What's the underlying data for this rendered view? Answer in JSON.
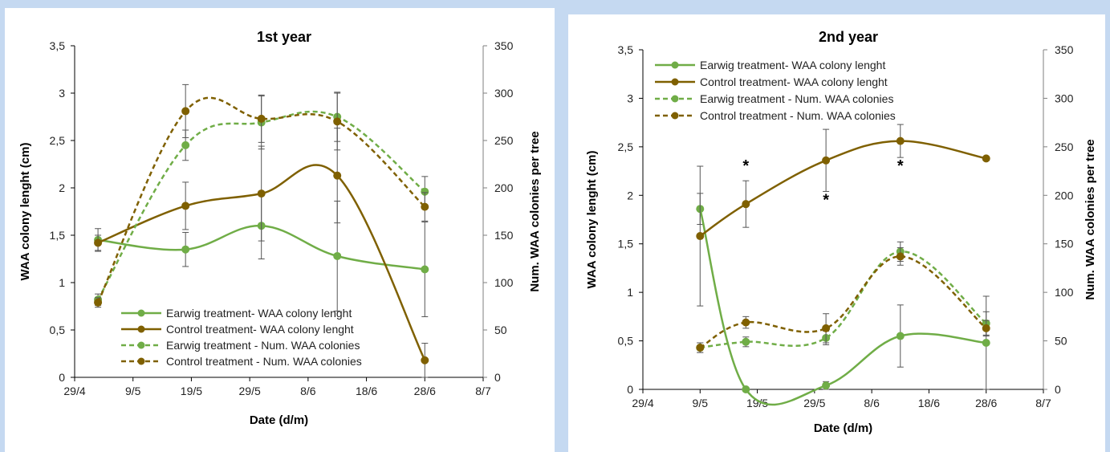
{
  "chart_data": [
    {
      "type": "line",
      "title": "1st year",
      "xlabel": "Date (d/m)",
      "ylabel": "WAA colony lenght (cm)",
      "y2label": "Num. WAA colonies per tree",
      "x_ticks": [
        "29/4",
        "9/5",
        "19/5",
        "29/5",
        "8/6",
        "18/6",
        "28/6",
        "8/7"
      ],
      "x_range_days": [
        0,
        70
      ],
      "y_ticks": [
        "0",
        "0,5",
        "1",
        "1,5",
        "2",
        "2,5",
        "3",
        "3,5"
      ],
      "ylim": [
        0,
        3.5
      ],
      "y2_ticks": [
        "0",
        "50",
        "100",
        "150",
        "200",
        "250",
        "300",
        "350"
      ],
      "y2lim": [
        0,
        350
      ],
      "legend_position": "bottom-center",
      "series": [
        {
          "name": "Earwig treatment- WAA colony lenght",
          "axis": "left",
          "color": "#70ad47",
          "dash": false,
          "x": [
            "3/5",
            "18/5",
            "31/5",
            "13/6",
            "28/6"
          ],
          "values": [
            1.45,
            1.35,
            1.6,
            1.28,
            1.14
          ],
          "errors": [
            0.12,
            0.18,
            0.35,
            0.58,
            0.5
          ]
        },
        {
          "name": "Control treatment- WAA colony lenght",
          "axis": "left",
          "color": "#7f6000",
          "dash": false,
          "x": [
            "3/5",
            "18/5",
            "31/5",
            "13/6",
            "28/6"
          ],
          "values": [
            1.42,
            1.81,
            1.94,
            2.13,
            0.18
          ],
          "errors": [
            0.08,
            0.25,
            0.5,
            0.5,
            0.18
          ]
        },
        {
          "name": "Earwig treatment - Num. WAA colonies",
          "axis": "right",
          "color": "#70ad47",
          "dash": true,
          "x": [
            "3/5",
            "18/5",
            "31/5",
            "13/6",
            "28/6"
          ],
          "values": [
            82,
            245,
            269,
            275,
            196
          ],
          "errors": [
            6,
            16,
            28,
            26,
            16
          ]
        },
        {
          "name": "Control treatment - Num. WAA colonies",
          "axis": "right",
          "color": "#7f6000",
          "dash": true,
          "x": [
            "3/5",
            "18/5",
            "31/5",
            "13/6",
            "28/6"
          ],
          "values": [
            79,
            281,
            273,
            270,
            180
          ],
          "errors": [
            5,
            28,
            25,
            30,
            15
          ]
        }
      ],
      "annotations": []
    },
    {
      "type": "line",
      "title": "2nd year",
      "xlabel": "Date (d/m)",
      "ylabel": "WAA colony lenght (cm)",
      "y2label": "Num. WAA colonies per tree",
      "x_ticks": [
        "29/4",
        "9/5",
        "19/5",
        "29/5",
        "8/6",
        "18/6",
        "28/6",
        "8/7"
      ],
      "x_range_days": [
        0,
        70
      ],
      "y_ticks": [
        "0",
        "0,5",
        "1",
        "1,5",
        "2",
        "2,5",
        "3",
        "3,5"
      ],
      "ylim": [
        0,
        3.5
      ],
      "y2_ticks": [
        "0",
        "50",
        "100",
        "150",
        "200",
        "250",
        "300",
        "350"
      ],
      "y2lim": [
        0,
        350
      ],
      "legend_position": "top-left",
      "series": [
        {
          "name": "Earwig treatment- WAA colony lenght",
          "axis": "left",
          "color": "#70ad47",
          "dash": false,
          "x": [
            "9/5",
            "17/5",
            "31/5",
            "13/6",
            "28/6"
          ],
          "values": [
            1.86,
            0.0,
            0.04,
            0.55,
            0.48
          ],
          "errors": [
            0.16,
            0,
            0.04,
            0.32,
            0.48
          ]
        },
        {
          "name": "Control treatment- WAA colony lenght",
          "axis": "left",
          "color": "#7f6000",
          "dash": false,
          "x": [
            "9/5",
            "17/5",
            "31/5",
            "13/6",
            "28/6"
          ],
          "values": [
            1.58,
            1.91,
            2.36,
            2.56,
            2.38
          ],
          "errors": [
            0.72,
            0.24,
            0.32,
            0.17,
            0
          ]
        },
        {
          "name": "Earwig treatment - Num. WAA colonies",
          "axis": "right",
          "color": "#70ad47",
          "dash": true,
          "x": [
            "9/5",
            "17/5",
            "31/5",
            "13/6",
            "28/6"
          ],
          "values": [
            43,
            49,
            53,
            142,
            68
          ],
          "errors": [
            5,
            5,
            7,
            10,
            12
          ]
        },
        {
          "name": "Control treatment - Num. WAA colonies",
          "axis": "right",
          "color": "#7f6000",
          "dash": true,
          "x": [
            "9/5",
            "17/5",
            "31/5",
            "13/6",
            "28/6"
          ],
          "values": [
            43,
            69,
            63,
            137,
            63
          ],
          "errors": [
            5,
            6,
            15,
            9,
            8
          ]
        }
      ],
      "annotations": [
        {
          "text": "*",
          "x": "17/5",
          "y": 2.25
        },
        {
          "text": "*",
          "x": "31/5",
          "y": 1.9
        },
        {
          "text": "*",
          "x": "13/6",
          "y": 2.25
        }
      ]
    }
  ]
}
